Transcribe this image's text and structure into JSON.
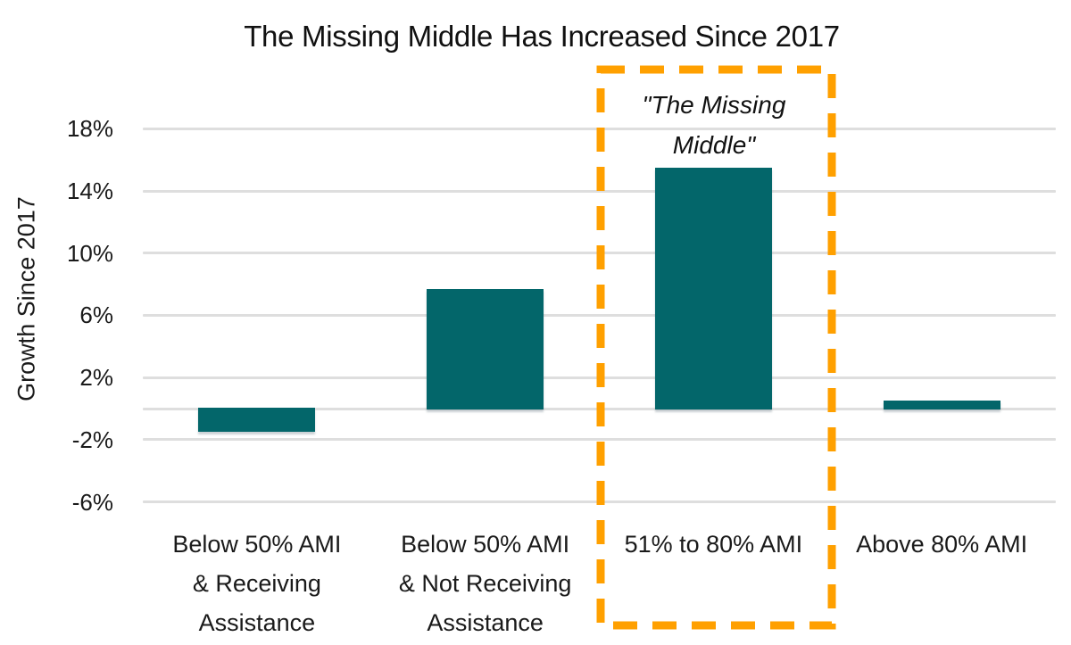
{
  "chart_data": {
    "type": "bar",
    "title": "The Missing Middle Has Increased Since 2017",
    "xlabel": "",
    "ylabel": "Growth Since 2017",
    "categories": [
      "Below 50% AMI\n& Receiving\nAssistance",
      "Below 50% AMI\n& Not Receiving\nAssistance",
      "51% to 80% AMI",
      "Above 80% AMI"
    ],
    "values": [
      -1.5,
      7.7,
      15.5,
      0.5
    ],
    "value_unit": "%",
    "yticks": [
      18,
      14,
      10,
      6,
      2,
      -2,
      -6
    ],
    "ytick_labels": [
      "18%",
      "14%",
      "10%",
      "6%",
      "2%",
      "-2%",
      "-6%"
    ],
    "ylim": [
      -8.5,
      20.5
    ],
    "grid": true,
    "zero_line": true,
    "legend": "none",
    "annotation": {
      "text": "\"The Missing\nMiddle\"",
      "highlighted_category": "51% to 80% AMI",
      "highlighted_category_index": 2
    },
    "colors": {
      "bar": "#03666A",
      "highlight_box": "#FFA000",
      "gridline": "#DEDEDE",
      "text": "#1A1A1A"
    }
  }
}
